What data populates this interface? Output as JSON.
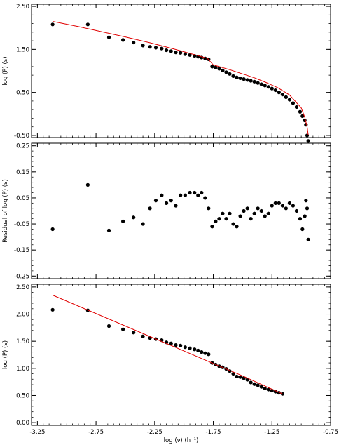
{
  "chart_data": [
    {
      "type": "scatter",
      "title": "",
      "xlabel": "",
      "ylabel": "log (P)  (s)",
      "xlim": [
        -3.3,
        -0.75
      ],
      "ylim": [
        -0.55,
        2.55
      ],
      "yticks": [
        -0.5,
        0.5,
        1.5,
        2.5
      ],
      "ytick_labels": [
        "-0.50",
        "0.50",
        "1.50",
        "2.50"
      ],
      "xticks": [
        -3.25,
        -2.75,
        -2.25,
        -1.75,
        -1.25,
        -0.75
      ],
      "xtick_labels": [
        "",
        "",
        "",
        "",
        "",
        ""
      ],
      "grid": false,
      "series": [
        {
          "kind": "points",
          "color": "#000000",
          "x": [
            -3.12,
            -2.82,
            -2.64,
            -2.52,
            -2.43,
            -2.35,
            -2.29,
            -2.24,
            -2.19,
            -2.15,
            -2.11,
            -2.07,
            -2.03,
            -1.99,
            -1.95,
            -1.91,
            -1.88,
            -1.85,
            -1.82,
            -1.79,
            -1.76,
            -1.73,
            -1.7,
            -1.67,
            -1.64,
            -1.61,
            -1.58,
            -1.55,
            -1.52,
            -1.49,
            -1.46,
            -1.43,
            -1.4,
            -1.37,
            -1.34,
            -1.31,
            -1.28,
            -1.25,
            -1.22,
            -1.19,
            -1.16,
            -1.13,
            -1.1,
            -1.07,
            -1.04,
            -1.01,
            -0.99,
            -0.97,
            -0.96,
            -0.95,
            -0.94
          ],
          "y": [
            2.08,
            2.08,
            1.78,
            1.72,
            1.66,
            1.59,
            1.56,
            1.54,
            1.52,
            1.48,
            1.46,
            1.43,
            1.42,
            1.39,
            1.37,
            1.35,
            1.33,
            1.31,
            1.29,
            1.27,
            1.1,
            1.08,
            1.05,
            1.01,
            0.97,
            0.93,
            0.88,
            0.85,
            0.83,
            0.81,
            0.79,
            0.77,
            0.75,
            0.72,
            0.69,
            0.66,
            0.63,
            0.59,
            0.55,
            0.5,
            0.45,
            0.39,
            0.33,
            0.25,
            0.16,
            0.05,
            -0.05,
            -0.15,
            -0.25,
            -0.5,
            -0.63
          ]
        },
        {
          "kind": "line",
          "color": "#e00000",
          "x": [
            -3.12,
            -2.9,
            -2.7,
            -2.5,
            -2.3,
            -2.1,
            -1.9,
            -1.8,
            -1.75,
            -1.6,
            -1.5,
            -1.4,
            -1.3,
            -1.2,
            -1.1,
            -1.0,
            -0.97,
            -0.95,
            -0.94
          ],
          "y": [
            2.15,
            2.03,
            1.91,
            1.79,
            1.66,
            1.52,
            1.37,
            1.29,
            1.14,
            1.02,
            0.93,
            0.84,
            0.73,
            0.61,
            0.44,
            0.14,
            -0.08,
            -0.3,
            -0.5
          ]
        }
      ]
    },
    {
      "type": "scatter",
      "title": "",
      "xlabel": "",
      "ylabel": "Residual of log (P)  (s)",
      "xlim": [
        -3.3,
        -0.75
      ],
      "ylim": [
        -0.26,
        0.26
      ],
      "yticks": [
        -0.25,
        -0.15,
        -0.05,
        0.05,
        0.15,
        0.25
      ],
      "ytick_labels": [
        "-0.25",
        "-0.15",
        "-0.05",
        "0.05",
        "0.15",
        "0.25"
      ],
      "xticks": [
        -3.25,
        -2.75,
        -2.25,
        -1.75,
        -1.25,
        -0.75
      ],
      "xtick_labels": [
        "",
        "",
        "",
        "",
        "",
        ""
      ],
      "grid": false,
      "series": [
        {
          "kind": "points",
          "color": "#000000",
          "x": [
            -3.12,
            -2.82,
            -2.64,
            -2.52,
            -2.43,
            -2.35,
            -2.29,
            -2.24,
            -2.19,
            -2.15,
            -2.11,
            -2.07,
            -2.03,
            -1.99,
            -1.95,
            -1.91,
            -1.88,
            -1.85,
            -1.82,
            -1.79,
            -1.76,
            -1.73,
            -1.7,
            -1.67,
            -1.64,
            -1.61,
            -1.58,
            -1.55,
            -1.52,
            -1.49,
            -1.46,
            -1.43,
            -1.4,
            -1.37,
            -1.34,
            -1.31,
            -1.28,
            -1.25,
            -1.22,
            -1.19,
            -1.16,
            -1.13,
            -1.1,
            -1.07,
            -1.04,
            -1.01,
            -0.99,
            -0.97,
            -0.96,
            -0.95,
            -0.94
          ],
          "y": [
            -0.07,
            0.1,
            -0.075,
            -0.04,
            -0.025,
            -0.05,
            0.01,
            0.04,
            0.06,
            0.03,
            0.04,
            0.02,
            0.06,
            0.06,
            0.07,
            0.07,
            0.06,
            0.07,
            0.05,
            0.01,
            -0.06,
            -0.04,
            -0.03,
            -0.01,
            -0.03,
            -0.01,
            -0.05,
            -0.06,
            -0.02,
            0.0,
            0.01,
            -0.03,
            -0.01,
            0.01,
            0.0,
            -0.02,
            -0.01,
            0.02,
            0.03,
            0.03,
            0.02,
            0.01,
            0.03,
            0.02,
            0.0,
            -0.03,
            -0.07,
            -0.02,
            0.04,
            0.01,
            -0.11
          ]
        }
      ]
    },
    {
      "type": "scatter",
      "title": "",
      "xlabel": "log (ν)  (h⁻¹)",
      "ylabel": "log (P)  (s)",
      "xlim": [
        -3.3,
        -0.75
      ],
      "ylim": [
        -0.05,
        2.55
      ],
      "yticks": [
        0.0,
        0.5,
        1.0,
        1.5,
        2.0,
        2.5
      ],
      "ytick_labels": [
        "0.00",
        "0.50",
        "1.00",
        "1.50",
        "2.00",
        "2.50"
      ],
      "xticks": [
        -3.25,
        -2.75,
        -2.25,
        -1.75,
        -1.25,
        -0.75
      ],
      "xtick_labels": [
        "-3.25",
        "-2.75",
        "-2.25",
        "-1.75",
        "-1.25",
        "-0.75"
      ],
      "grid": false,
      "series": [
        {
          "kind": "points",
          "color": "#000000",
          "x": [
            -3.12,
            -2.82,
            -2.64,
            -2.52,
            -2.43,
            -2.35,
            -2.29,
            -2.24,
            -2.19,
            -2.15,
            -2.11,
            -2.07,
            -2.03,
            -1.99,
            -1.95,
            -1.91,
            -1.88,
            -1.85,
            -1.82,
            -1.79,
            -1.76,
            -1.73,
            -1.7,
            -1.67,
            -1.64,
            -1.61,
            -1.58,
            -1.55,
            -1.52,
            -1.49,
            -1.46,
            -1.43,
            -1.4,
            -1.37,
            -1.34,
            -1.31,
            -1.28,
            -1.25,
            -1.22,
            -1.19,
            -1.16
          ],
          "y": [
            2.08,
            2.07,
            1.78,
            1.72,
            1.66,
            1.59,
            1.56,
            1.54,
            1.52,
            1.48,
            1.46,
            1.43,
            1.42,
            1.39,
            1.37,
            1.35,
            1.33,
            1.3,
            1.28,
            1.26,
            1.1,
            1.07,
            1.04,
            1.02,
            0.99,
            0.95,
            0.9,
            0.85,
            0.84,
            0.82,
            0.79,
            0.74,
            0.71,
            0.69,
            0.66,
            0.63,
            0.61,
            0.59,
            0.57,
            0.55,
            0.53
          ]
        },
        {
          "kind": "line",
          "color": "#e00000",
          "x": [
            -3.12,
            -2.5,
            -2.0,
            -1.75,
            -1.5,
            -1.16
          ],
          "y": [
            2.35,
            1.78,
            1.32,
            1.09,
            0.86,
            0.53
          ]
        }
      ]
    }
  ]
}
